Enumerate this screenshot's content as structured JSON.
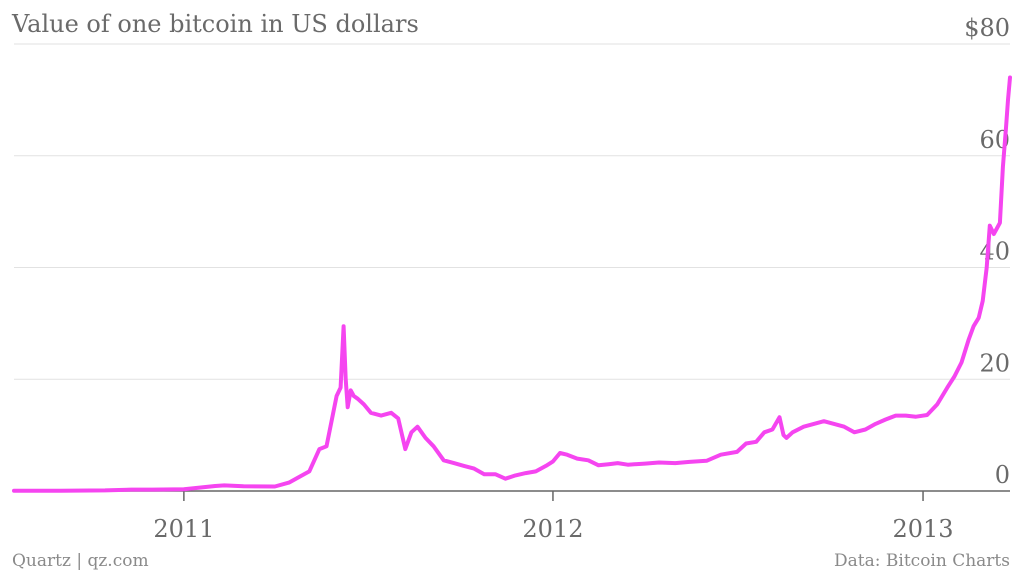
{
  "chart_data": {
    "type": "line",
    "title": "Value of one bitcoin in US dollars",
    "xlabel": "",
    "ylabel": "",
    "ylim": [
      0,
      80
    ],
    "y_ticks": [
      {
        "value": 80,
        "label": "$80"
      },
      {
        "value": 60,
        "label": "60"
      },
      {
        "value": 40,
        "label": "40"
      },
      {
        "value": 20,
        "label": "20"
      },
      {
        "value": 0,
        "label": "0"
      }
    ],
    "x_ticks": [
      {
        "x": "2011-01-01",
        "label": "2011"
      },
      {
        "x": "2012-01-01",
        "label": "2012"
      },
      {
        "x": "2013-01-01",
        "label": "2013"
      }
    ],
    "xlim": [
      "2010-07-17",
      "2013-03-28"
    ],
    "grid": true,
    "line_color": "#f545f0",
    "series": [
      {
        "x": [
          "2010-07-17",
          "2010-09-01",
          "2010-10-15",
          "2010-11-10",
          "2010-12-01",
          "2011-01-01",
          "2011-02-01",
          "2011-02-10",
          "2011-03-01",
          "2011-04-01",
          "2011-04-15",
          "2011-04-25",
          "2011-05-05",
          "2011-05-15",
          "2011-05-22",
          "2011-06-01",
          "2011-06-05",
          "2011-06-08",
          "2011-06-10",
          "2011-06-12",
          "2011-06-15",
          "2011-06-18",
          "2011-06-22",
          "2011-06-28",
          "2011-07-05",
          "2011-07-15",
          "2011-07-25",
          "2011-08-01",
          "2011-08-08",
          "2011-08-14",
          "2011-08-20",
          "2011-08-28",
          "2011-09-05",
          "2011-09-15",
          "2011-09-25",
          "2011-10-05",
          "2011-10-15",
          "2011-10-25",
          "2011-11-05",
          "2011-11-15",
          "2011-11-25",
          "2011-12-05",
          "2011-12-15",
          "2011-12-25",
          "2012-01-01",
          "2012-01-08",
          "2012-01-15",
          "2012-01-25",
          "2012-02-05",
          "2012-02-15",
          "2012-02-25",
          "2012-03-05",
          "2012-03-15",
          "2012-04-01",
          "2012-04-15",
          "2012-05-01",
          "2012-05-15",
          "2012-06-01",
          "2012-06-15",
          "2012-07-01",
          "2012-07-10",
          "2012-07-20",
          "2012-07-28",
          "2012-08-05",
          "2012-08-12",
          "2012-08-16",
          "2012-08-19",
          "2012-08-25",
          "2012-09-05",
          "2012-09-15",
          "2012-09-25",
          "2012-10-05",
          "2012-10-15",
          "2012-10-25",
          "2012-11-05",
          "2012-11-15",
          "2012-11-25",
          "2012-12-05",
          "2012-12-15",
          "2012-12-25",
          "2013-01-05",
          "2013-01-15",
          "2013-01-25",
          "2013-02-01",
          "2013-02-08",
          "2013-02-15",
          "2013-02-20",
          "2013-02-25",
          "2013-03-01",
          "2013-03-05",
          "2013-03-08",
          "2013-03-12",
          "2013-03-15",
          "2013-03-18",
          "2013-03-21",
          "2013-03-24",
          "2013-03-26",
          "2013-03-28"
        ],
        "values": [
          0.06,
          0.06,
          0.1,
          0.25,
          0.25,
          0.3,
          0.9,
          1.0,
          0.85,
          0.8,
          1.5,
          2.5,
          3.5,
          7.5,
          8.0,
          17.0,
          18.5,
          29.5,
          20.0,
          15.0,
          18.0,
          17.0,
          16.5,
          15.5,
          14.0,
          13.5,
          14.0,
          13.0,
          7.5,
          10.5,
          11.5,
          9.5,
          8.0,
          5.5,
          5.0,
          4.5,
          4.0,
          3.0,
          3.0,
          2.2,
          2.8,
          3.2,
          3.5,
          4.5,
          5.3,
          6.8,
          6.5,
          5.8,
          5.5,
          4.6,
          4.8,
          5.0,
          4.7,
          4.9,
          5.1,
          5.0,
          5.2,
          5.4,
          6.5,
          7.0,
          8.5,
          8.8,
          10.5,
          11.0,
          13.2,
          10.0,
          9.5,
          10.5,
          11.5,
          12.0,
          12.5,
          12.0,
          11.5,
          10.5,
          11.0,
          12.0,
          12.8,
          13.5,
          13.5,
          13.3,
          13.6,
          15.5,
          18.5,
          20.5,
          23.0,
          27.0,
          29.5,
          31.0,
          34.0,
          40.0,
          47.5,
          46.0,
          47.0,
          48.0,
          58.0,
          65.0,
          70.0,
          74.0
        ]
      }
    ]
  },
  "footer": {
    "source_left": "Quartz | qz.com",
    "source_right": "Data: Bitcoin Charts"
  }
}
